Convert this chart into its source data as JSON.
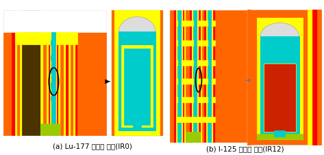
{
  "fig_width": 4.73,
  "fig_height": 2.28,
  "dpi": 100,
  "bg_color": "#ffffff",
  "caption_a": "(a) Lu-177 생상량 평가(IR0)",
  "caption_b": "(b) I-125 생산량 평가(IR12)",
  "caption_fontsize": 7.5
}
